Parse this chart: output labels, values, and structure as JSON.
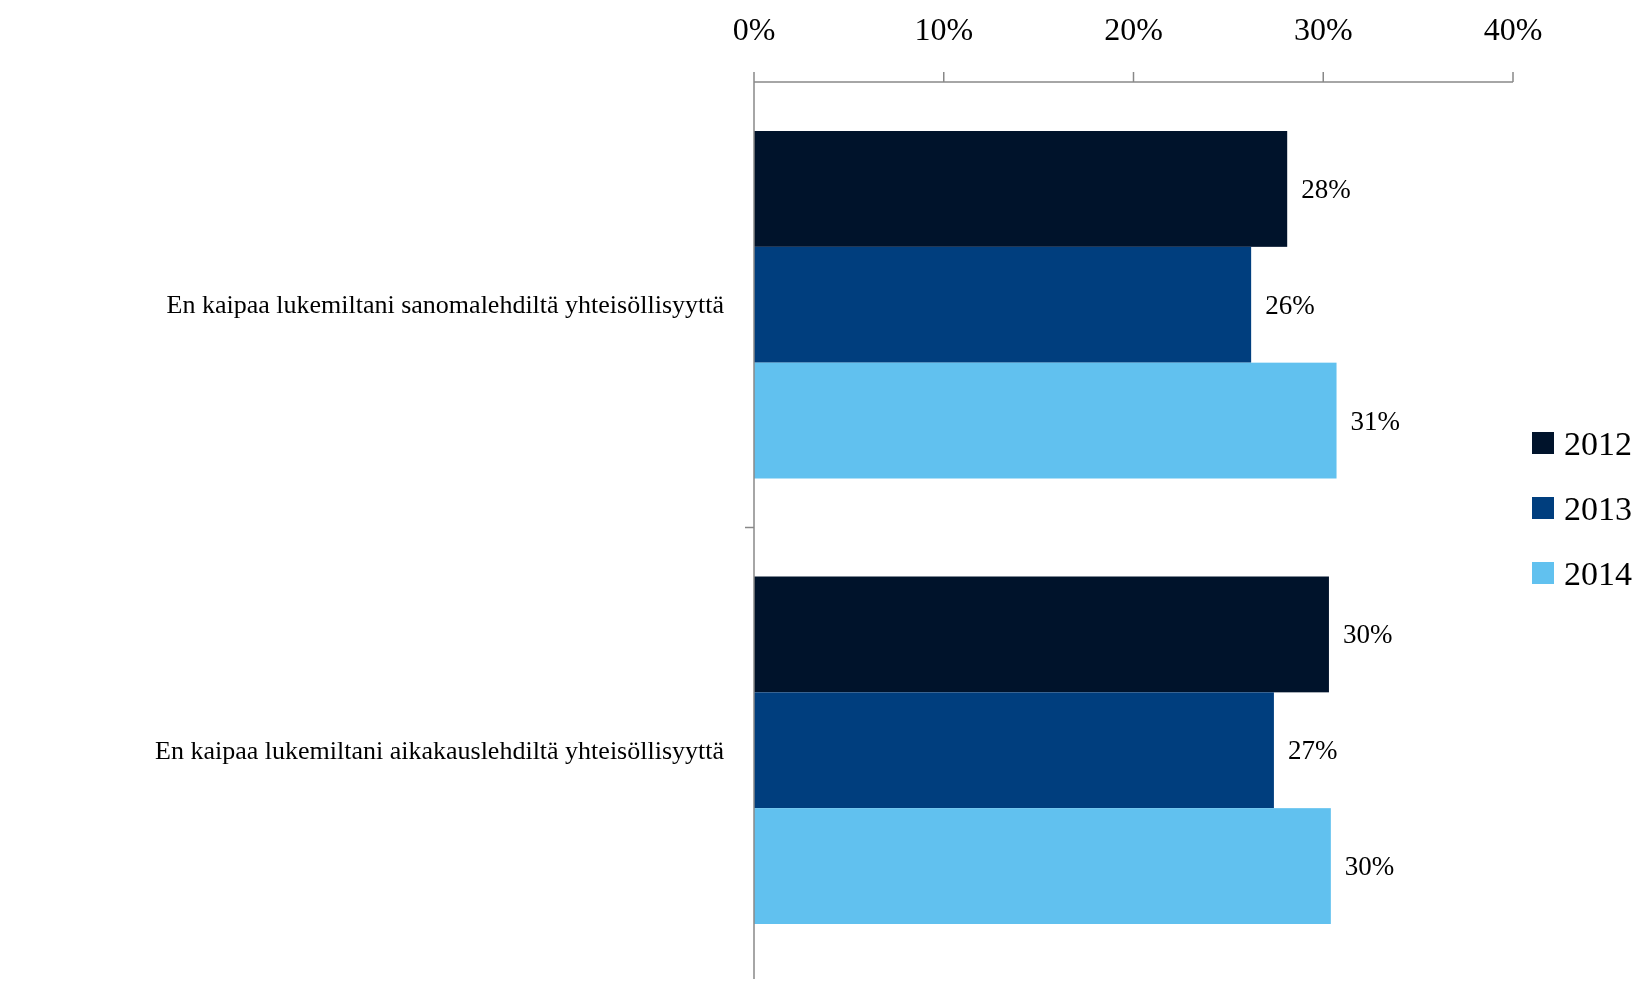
{
  "chart_data": {
    "type": "bar",
    "orientation": "horizontal",
    "categories": [
      "En kaipaa lukemiltani sanomalehdiltä yhteisöllisyyttä",
      "En kaipaa lukemiltani aikakauslehdiltä yhteisöllisyyttä"
    ],
    "series": [
      {
        "name": "2012",
        "color": "#00132b",
        "values": [
          28.1,
          30.3
        ],
        "value_labels": [
          "28%",
          "30%"
        ]
      },
      {
        "name": "2013",
        "color": "#003e7e",
        "values": [
          26.2,
          27.4
        ],
        "value_labels": [
          "26%",
          "27%"
        ]
      },
      {
        "name": "2014",
        "color": "#61c1ef",
        "values": [
          30.7,
          30.4
        ],
        "value_labels": [
          "31%",
          "30%"
        ]
      }
    ],
    "xlim": [
      0,
      40
    ],
    "xticks": [
      {
        "value": 0,
        "label": "0%"
      },
      {
        "value": 10,
        "label": "10%"
      },
      {
        "value": 20,
        "label": "20%"
      },
      {
        "value": 30,
        "label": "30%"
      },
      {
        "value": 40,
        "label": "40%"
      }
    ],
    "grid": false,
    "legend": "right"
  }
}
